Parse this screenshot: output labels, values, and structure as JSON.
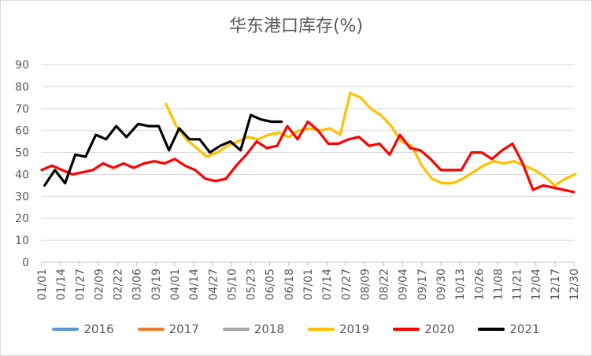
{
  "chart_data": {
    "type": "line",
    "title": "华东港口库存(%)",
    "xlabel": "",
    "ylabel": "",
    "ylim": [
      0,
      90
    ],
    "yticks": [
      0,
      10,
      20,
      30,
      40,
      50,
      60,
      70,
      80,
      90
    ],
    "grid": "horizontal",
    "legend_position": "bottom",
    "x_tick_labels": [
      "01/01",
      "01/14",
      "01/27",
      "02/09",
      "02/22",
      "03/06",
      "03/19",
      "04/01",
      "04/14",
      "04/27",
      "05/10",
      "05/23",
      "06/05",
      "06/18",
      "07/01",
      "07/14",
      "07/27",
      "08/09",
      "08/22",
      "09/04",
      "09/17",
      "09/30",
      "10/13",
      "10/26",
      "11/08",
      "11/21",
      "12/04",
      "12/17",
      "12/30"
    ],
    "series": [
      {
        "name": "2016",
        "color": "#5b9bd5",
        "points": []
      },
      {
        "name": "2017",
        "color": "#ed7d31",
        "points": []
      },
      {
        "name": "2018",
        "color": "#a5a5a5",
        "points": []
      },
      {
        "name": "2019",
        "color": "#ffc000",
        "points": [
          [
            "03/26",
            72
          ],
          [
            "04/02",
            62
          ],
          [
            "04/09",
            56
          ],
          [
            "04/16",
            52
          ],
          [
            "04/23",
            48
          ],
          [
            "04/30",
            50
          ],
          [
            "05/07",
            53
          ],
          [
            "05/14",
            55
          ],
          [
            "05/21",
            57
          ],
          [
            "05/28",
            56
          ],
          [
            "06/04",
            58
          ],
          [
            "06/11",
            59
          ],
          [
            "06/18",
            57
          ],
          [
            "06/25",
            60
          ],
          [
            "07/02",
            61
          ],
          [
            "07/09",
            60
          ],
          [
            "07/16",
            61
          ],
          [
            "07/23",
            58
          ],
          [
            "07/30",
            77
          ],
          [
            "08/06",
            75
          ],
          [
            "08/13",
            70
          ],
          [
            "08/20",
            67
          ],
          [
            "08/27",
            62
          ],
          [
            "09/03",
            55
          ],
          [
            "09/10",
            53
          ],
          [
            "09/17",
            44
          ],
          [
            "09/24",
            38
          ],
          [
            "10/01",
            36
          ],
          [
            "10/08",
            36
          ],
          [
            "10/15",
            38
          ],
          [
            "10/22",
            41
          ],
          [
            "10/29",
            44
          ],
          [
            "11/05",
            46
          ],
          [
            "11/12",
            45
          ],
          [
            "11/19",
            46
          ],
          [
            "11/26",
            44
          ],
          [
            "12/03",
            42
          ],
          [
            "12/10",
            39
          ],
          [
            "12/17",
            35
          ],
          [
            "12/24",
            38
          ],
          [
            "12/31",
            40
          ]
        ]
      },
      {
        "name": "2020",
        "color": "#ff0000",
        "points": [
          [
            "01/01",
            42
          ],
          [
            "01/08",
            44
          ],
          [
            "01/15",
            42
          ],
          [
            "01/22",
            40
          ],
          [
            "01/29",
            41
          ],
          [
            "02/05",
            42
          ],
          [
            "02/12",
            45
          ],
          [
            "02/19",
            43
          ],
          [
            "02/26",
            45
          ],
          [
            "03/04",
            43
          ],
          [
            "03/11",
            45
          ],
          [
            "03/18",
            46
          ],
          [
            "03/25",
            45
          ],
          [
            "04/01",
            47
          ],
          [
            "04/08",
            44
          ],
          [
            "04/15",
            42
          ],
          [
            "04/22",
            38
          ],
          [
            "04/29",
            37
          ],
          [
            "05/06",
            38
          ],
          [
            "05/13",
            44
          ],
          [
            "05/20",
            49
          ],
          [
            "05/27",
            55
          ],
          [
            "06/03",
            52
          ],
          [
            "06/10",
            53
          ],
          [
            "06/17",
            62
          ],
          [
            "06/24",
            56
          ],
          [
            "07/01",
            64
          ],
          [
            "07/08",
            60
          ],
          [
            "07/15",
            54
          ],
          [
            "07/22",
            54
          ],
          [
            "07/29",
            56
          ],
          [
            "08/05",
            57
          ],
          [
            "08/12",
            53
          ],
          [
            "08/19",
            54
          ],
          [
            "08/26",
            49
          ],
          [
            "09/02",
            58
          ],
          [
            "09/09",
            52
          ],
          [
            "09/16",
            51
          ],
          [
            "09/23",
            47
          ],
          [
            "09/30",
            42
          ],
          [
            "10/07",
            42
          ],
          [
            "10/14",
            42
          ],
          [
            "10/21",
            50
          ],
          [
            "10/28",
            50
          ],
          [
            "11/04",
            47
          ],
          [
            "11/11",
            51
          ],
          [
            "11/18",
            54
          ],
          [
            "11/25",
            45
          ],
          [
            "12/02",
            33
          ],
          [
            "12/09",
            35
          ],
          [
            "12/16",
            34
          ],
          [
            "12/23",
            33
          ],
          [
            "12/30",
            32
          ]
        ]
      },
      {
        "name": "2021",
        "color": "#000000",
        "points": [
          [
            "01/03",
            35
          ],
          [
            "01/10",
            42
          ],
          [
            "01/17",
            36
          ],
          [
            "01/24",
            49
          ],
          [
            "01/31",
            48
          ],
          [
            "02/07",
            58
          ],
          [
            "02/14",
            56
          ],
          [
            "02/21",
            62
          ],
          [
            "02/28",
            57
          ],
          [
            "03/07",
            63
          ],
          [
            "03/14",
            62
          ],
          [
            "03/21",
            62
          ],
          [
            "03/28",
            51
          ],
          [
            "04/04",
            61
          ],
          [
            "04/11",
            56
          ],
          [
            "04/18",
            56
          ],
          [
            "04/25",
            50
          ],
          [
            "05/02",
            53
          ],
          [
            "05/09",
            55
          ],
          [
            "05/16",
            51
          ],
          [
            "05/23",
            67
          ],
          [
            "05/30",
            65
          ],
          [
            "06/06",
            64
          ],
          [
            "06/13",
            64
          ]
        ]
      }
    ]
  }
}
